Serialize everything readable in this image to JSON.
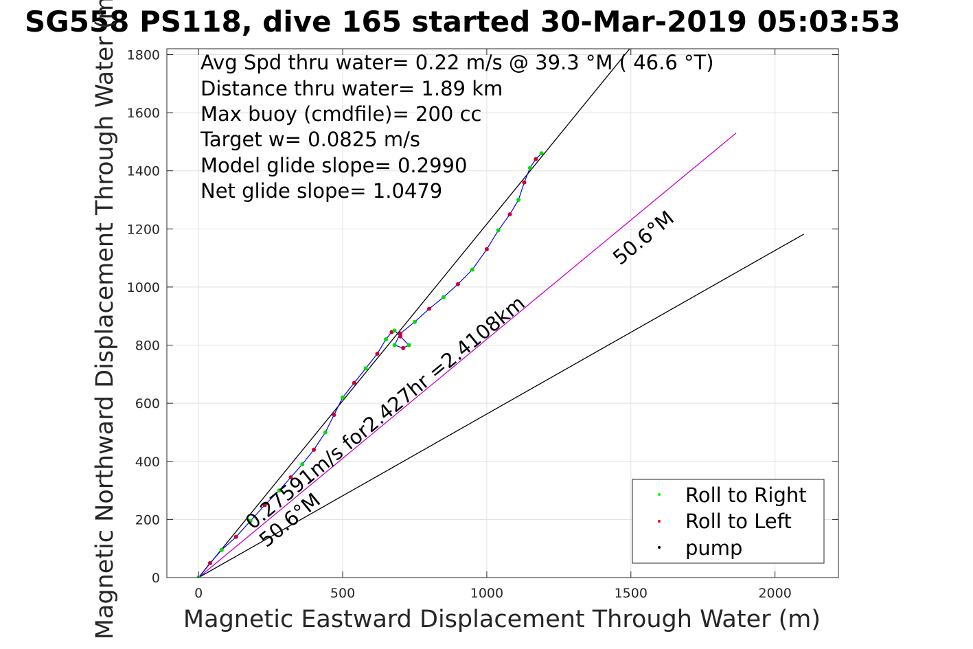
{
  "chart_data": {
    "type": "line",
    "title": "SG558 PS118, dive 165 started 30-Mar-2019 05:03:53",
    "xlabel": "Magnetic Eastward Displacement Through Water (m)",
    "ylabel": "Magnetic Northward Displacement Through Water (m)",
    "xlim": [
      -110,
      2220
    ],
    "ylim": [
      0,
      1820
    ],
    "xticks": [
      0,
      500,
      1000,
      1500,
      2000
    ],
    "yticks": [
      0,
      200,
      400,
      600,
      800,
      1000,
      1200,
      1400,
      1600,
      1800
    ],
    "grid": true,
    "annotations": [
      "Avg Spd thru water=  0.22 m/s @  39.3 °M ( 46.6 °T)",
      "Distance thru water=  1.89 km",
      "Max buoy (cmdfile)= 200 cc",
      "Target w= 0.0825 m/s",
      "Model glide slope= 0.2990",
      "Net glide slope= 1.0479"
    ],
    "diagonal_label": "0.27591m/s for2.427hr =2.4108km",
    "heading_labels": [
      "50.6°M",
      "50.6°M"
    ],
    "legend": {
      "position": "bottom-right",
      "entries": [
        {
          "label": "Roll to Right",
          "color": "#00ff00"
        },
        {
          "label": "Roll to Left",
          "color": "#ff0000"
        },
        {
          "label": "pump",
          "color": "#000000"
        }
      ]
    },
    "lines": [
      {
        "role": "avg-heading-line",
        "color": "#000000",
        "x": [
          0,
          1500
        ],
        "y": [
          0,
          1825
        ]
      },
      {
        "role": "target-line",
        "color": "#cc00cc",
        "x": [
          0,
          1865
        ],
        "y": [
          0,
          1530
        ]
      },
      {
        "role": "heading-line",
        "color": "#000000",
        "x": [
          0,
          2100
        ],
        "y": [
          0,
          1182
        ]
      }
    ],
    "series": [
      {
        "name": "track",
        "color": "#0000ff",
        "x": [
          0,
          40,
          80,
          130,
          180,
          230,
          280,
          320,
          360,
          400,
          440,
          470,
          500,
          540,
          580,
          620,
          650,
          670,
          680,
          700,
          730,
          710,
          680,
          700,
          750,
          800,
          850,
          900,
          950,
          1000,
          1040,
          1080,
          1110,
          1130,
          1150,
          1170,
          1190
        ],
        "y": [
          0,
          50,
          95,
          140,
          195,
          250,
          300,
          345,
          390,
          440,
          500,
          560,
          620,
          670,
          720,
          770,
          820,
          845,
          850,
          830,
          800,
          790,
          800,
          840,
          880,
          925,
          965,
          1010,
          1060,
          1130,
          1195,
          1250,
          1300,
          1360,
          1410,
          1440,
          1460
        ]
      }
    ]
  }
}
